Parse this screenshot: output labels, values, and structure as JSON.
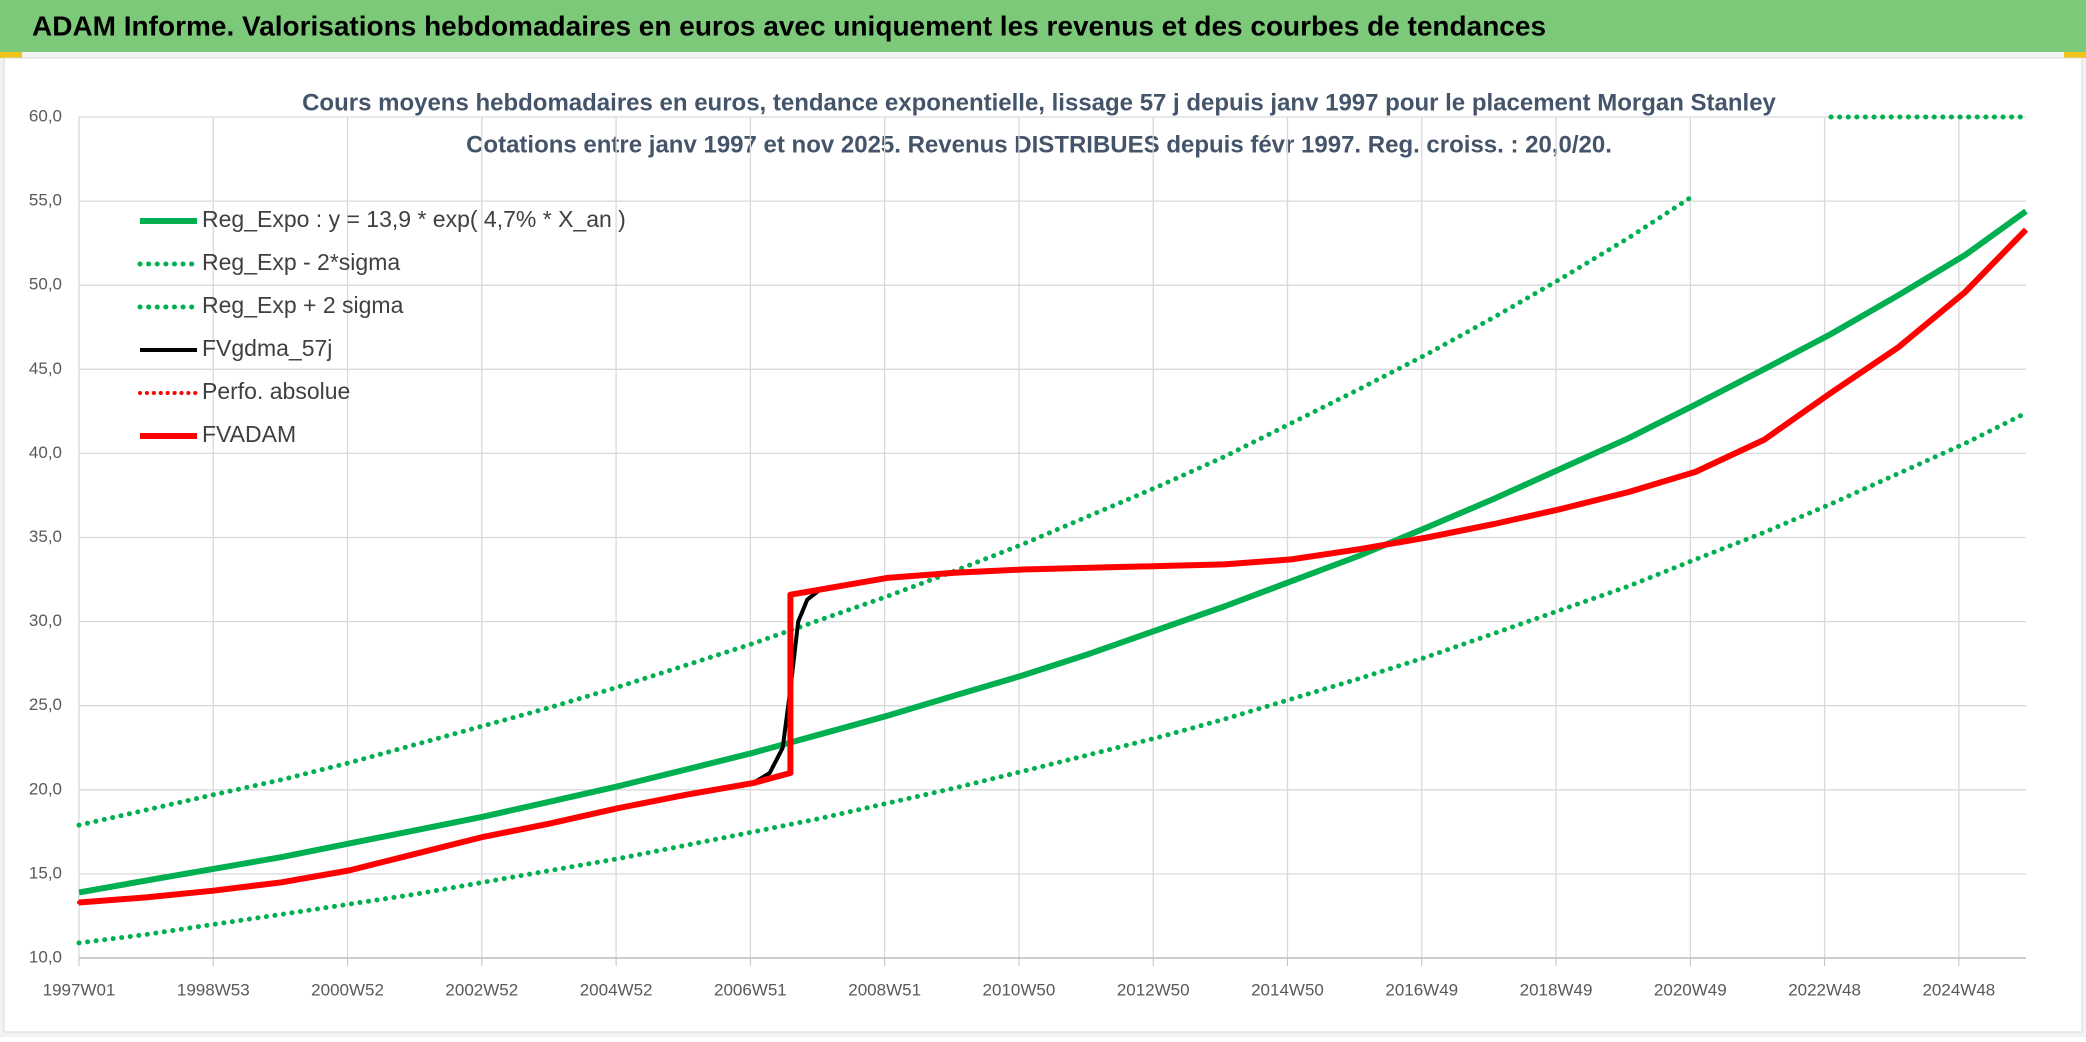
{
  "header": {
    "title": "ADAM Informe. Valorisations hebdomadaires en euros avec uniquement les revenus et des courbes de tendances"
  },
  "chart_data": {
    "type": "line",
    "title": "Cours moyens hebdomadaires en euros, tendance exponentielle, lissage 57 j depuis janv 1997 pour le placement Morgan Stanley",
    "subtitle": "Cotations entre janv 1997 et nov 2025. Revenus DISTRIBUES depuis févr 1997. Reg. croiss. : 20,0/20.",
    "xlim": [
      0,
      1508
    ],
    "xticks": [
      {
        "value": 0,
        "label": "1997W01"
      },
      {
        "value": 104,
        "label": "1998W53"
      },
      {
        "value": 208,
        "label": "2000W52"
      },
      {
        "value": 312,
        "label": "2002W52"
      },
      {
        "value": 416,
        "label": "2004W52"
      },
      {
        "value": 520,
        "label": "2006W51"
      },
      {
        "value": 624,
        "label": "2008W51"
      },
      {
        "value": 728,
        "label": "2010W50"
      },
      {
        "value": 832,
        "label": "2012W50"
      },
      {
        "value": 936,
        "label": "2014W50"
      },
      {
        "value": 1040,
        "label": "2016W49"
      },
      {
        "value": 1144,
        "label": "2018W49"
      },
      {
        "value": 1248,
        "label": "2020W49"
      },
      {
        "value": 1352,
        "label": "2022W48"
      },
      {
        "value": 1456,
        "label": "2024W48"
      }
    ],
    "ylim": [
      10,
      60
    ],
    "yticks": [
      {
        "value": 10,
        "label": "10,0"
      },
      {
        "value": 15,
        "label": "15,0"
      },
      {
        "value": 20,
        "label": "20,0"
      },
      {
        "value": 25,
        "label": "25,0"
      },
      {
        "value": 30,
        "label": "30,0"
      },
      {
        "value": 35,
        "label": "35,0"
      },
      {
        "value": 40,
        "label": "40,0"
      },
      {
        "value": 45,
        "label": "45,0"
      },
      {
        "value": 50,
        "label": "50,0"
      },
      {
        "value": 55,
        "label": "55,0"
      },
      {
        "value": 60,
        "label": "60,0"
      }
    ],
    "grid": true,
    "series": [
      {
        "name": "Reg_Expo : y = 13,9 * exp( 4,7% *  X_an )",
        "color": "#00b050",
        "style": "solid",
        "width": 6,
        "x": [
          0,
          52,
          104,
          157,
          209,
          261,
          313,
          365,
          417,
          470,
          522,
          574,
          626,
          678,
          731,
          783,
          835,
          887,
          939,
          991,
          1044,
          1096,
          1148,
          1200,
          1252,
          1305,
          1357,
          1409,
          1461,
          1508
        ],
        "values": [
          13.9,
          14.6,
          15.3,
          16.0,
          16.8,
          17.6,
          18.4,
          19.3,
          20.2,
          21.2,
          22.2,
          23.3,
          24.4,
          25.6,
          26.8,
          28.1,
          29.5,
          30.9,
          32.4,
          33.9,
          35.6,
          37.3,
          39.1,
          40.9,
          42.9,
          45.0,
          47.1,
          49.4,
          51.8,
          54.4
        ]
      },
      {
        "name": "Reg_Exp - 2*sigma",
        "color": "#00b050",
        "style": "dotted",
        "width": 5,
        "x": [
          0,
          52,
          104,
          157,
          209,
          261,
          313,
          365,
          417,
          470,
          522,
          574,
          626,
          678,
          731,
          783,
          835,
          887,
          939,
          991,
          1044,
          1096,
          1148,
          1200,
          1252,
          1305,
          1357,
          1409,
          1461,
          1508
        ],
        "values": [
          10.9,
          11.4,
          12.0,
          12.6,
          13.2,
          13.8,
          14.5,
          15.2,
          15.9,
          16.7,
          17.5,
          18.3,
          19.2,
          20.1,
          21.1,
          22.1,
          23.1,
          24.2,
          25.4,
          26.6,
          27.9,
          29.3,
          30.7,
          32.1,
          33.7,
          35.3,
          37.0,
          38.8,
          40.6,
          42.4
        ]
      },
      {
        "name": "Reg_Exp + 2 sigma",
        "color": "#00b050",
        "style": "dotted",
        "width": 5,
        "x": [
          0,
          52,
          104,
          157,
          209,
          261,
          313,
          365,
          417,
          470,
          522,
          574,
          626,
          678,
          731,
          783,
          835,
          887,
          939,
          991,
          1044,
          1096,
          1148,
          1200,
          1252,
          1305,
          1357,
          1409,
          1461,
          1508
        ],
        "values": [
          17.9,
          18.8,
          19.7,
          20.6,
          21.6,
          22.7,
          23.8,
          24.9,
          26.1,
          27.4,
          28.7,
          30.1,
          31.5,
          33.0,
          34.6,
          36.3,
          38.0,
          39.8,
          41.8,
          43.8,
          45.9,
          48.1,
          50.4,
          52.8,
          55.4,
          null,
          60,
          60,
          60,
          60
        ]
      },
      {
        "name": "FVgdma_57j",
        "color": "#000000",
        "style": "solid",
        "width": 4,
        "x": [
          0,
          52,
          104,
          157,
          209,
          261,
          313,
          365,
          417,
          470,
          522,
          535,
          545,
          551,
          557,
          564,
          574,
          626,
          678,
          731,
          783,
          835,
          887,
          939,
          991,
          1044,
          1096,
          1148,
          1200,
          1252,
          1305,
          1357,
          1409,
          1461,
          1508
        ],
        "values": [
          13.3,
          13.6,
          14.0,
          14.5,
          15.2,
          16.2,
          17.2,
          18.0,
          18.9,
          19.7,
          20.4,
          21.0,
          22.5,
          26.0,
          30.0,
          31.3,
          31.9,
          32.6,
          32.9,
          33.1,
          33.2,
          33.3,
          33.4,
          33.7,
          34.3,
          35.0,
          35.8,
          36.7,
          37.7,
          38.9,
          40.8,
          43.6,
          46.3,
          49.6,
          53.3
        ]
      },
      {
        "name": "Perfo. absolue",
        "color": "#ff0000",
        "style": "dotted",
        "width": 4,
        "x": [
          0,
          52,
          104,
          157,
          209,
          261,
          313,
          365,
          417,
          470,
          522,
          551,
          551,
          574,
          626,
          678,
          731,
          783,
          835,
          887,
          939,
          991,
          1044,
          1096,
          1148,
          1200,
          1252,
          1305,
          1357,
          1409,
          1461,
          1508
        ],
        "values": [
          13.3,
          13.6,
          14.0,
          14.5,
          15.2,
          16.2,
          17.2,
          18.0,
          18.9,
          19.7,
          20.4,
          21.0,
          31.6,
          31.9,
          32.6,
          32.9,
          33.1,
          33.2,
          33.3,
          33.4,
          33.7,
          34.3,
          35.0,
          35.8,
          36.7,
          37.7,
          38.9,
          40.8,
          43.6,
          46.3,
          49.6,
          53.3
        ]
      },
      {
        "name": "FVADAM",
        "color": "#ff0000",
        "style": "solid",
        "width": 6,
        "x": [
          0,
          52,
          104,
          157,
          209,
          261,
          313,
          365,
          417,
          470,
          522,
          551,
          551,
          574,
          626,
          678,
          731,
          783,
          835,
          887,
          939,
          991,
          1044,
          1096,
          1148,
          1200,
          1252,
          1305,
          1357,
          1409,
          1461,
          1508
        ],
        "values": [
          13.3,
          13.6,
          14.0,
          14.5,
          15.2,
          16.2,
          17.2,
          18.0,
          18.9,
          19.7,
          20.4,
          21.0,
          31.6,
          31.9,
          32.6,
          32.9,
          33.1,
          33.2,
          33.3,
          33.4,
          33.7,
          34.3,
          35.0,
          35.8,
          36.7,
          37.7,
          38.9,
          40.8,
          43.6,
          46.3,
          49.6,
          53.3
        ]
      }
    ]
  }
}
